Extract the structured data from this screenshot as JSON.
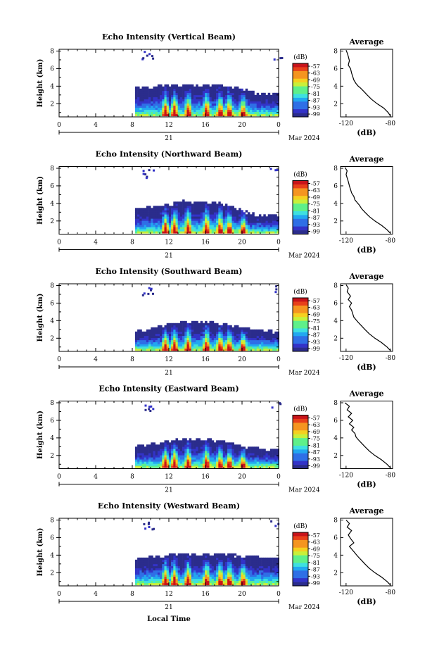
{
  "chart_data": [
    {
      "type": "heatmap",
      "title": "Echo Intensity (Vertical Beam)",
      "ylabel": "Height (km)",
      "x_ticks": [
        "0",
        "4",
        "8",
        "12",
        "16",
        "20",
        "0"
      ],
      "y_ticks": [
        "2",
        "4",
        "6",
        "8"
      ],
      "xlim": [
        0,
        24
      ],
      "ylim": [
        0.5,
        8.2
      ],
      "date_labels": {
        "day": "21",
        "month_year": "Mar 2024"
      },
      "colorbar": {
        "unit": "(dB)",
        "ticks": [
          "-57",
          "-63",
          "-69",
          "-75",
          "-81",
          "-87",
          "-93",
          "-99"
        ]
      },
      "profile": {
        "title": "Average",
        "xlabel": "(dB)",
        "x_ticks": [
          "-120",
          "-80"
        ],
        "y_ticks": [
          "2",
          "4",
          "6",
          "8"
        ],
        "xlim": [
          -125,
          -78
        ],
        "ylim": [
          0.5,
          8.2
        ],
        "x": [
          -80,
          -82,
          -86,
          -92,
          -97,
          -101,
          -104,
          -107,
          -109,
          -111,
          -113,
          -114,
          -115,
          -116,
          -118,
          -117,
          -118,
          -119,
          -120
        ],
        "y": [
          0.6,
          1.0,
          1.5,
          2.0,
          2.5,
          3.0,
          3.4,
          3.8,
          4.0,
          4.3,
          4.7,
          5.1,
          5.5,
          6.0,
          6.4,
          6.9,
          7.4,
          7.8,
          8.1
        ]
      },
      "cloud_top_km": [
        3.8,
        3.9,
        4.0,
        4.0,
        4.1,
        4.2,
        4.1,
        4.0,
        3.9,
        3.6,
        3.2,
        3.1,
        3.0
      ],
      "strong_echo_hours": [
        11.5,
        12.5,
        14.0,
        16.0,
        17.5,
        18.5,
        20.0
      ]
    },
    {
      "type": "heatmap",
      "title": "Echo Intensity (Northward Beam)",
      "ylabel": "Height (km)",
      "x_ticks": [
        "0",
        "4",
        "8",
        "12",
        "16",
        "20",
        "0"
      ],
      "y_ticks": [
        "2",
        "4",
        "6",
        "8"
      ],
      "xlim": [
        0,
        24
      ],
      "ylim": [
        0.5,
        8.2
      ],
      "date_labels": {
        "day": "21",
        "month_year": "Mar 2024"
      },
      "colorbar": {
        "unit": "(dB)",
        "ticks": [
          "-57",
          "-63",
          "-69",
          "-75",
          "-81",
          "-87",
          "-93",
          "-99"
        ]
      },
      "profile": {
        "title": "Average",
        "xlabel": "(dB)",
        "x_ticks": [
          "-120",
          "-80"
        ],
        "y_ticks": [
          "2",
          "4",
          "6",
          "8"
        ],
        "xlim": [
          -125,
          -78
        ],
        "ylim": [
          0.5,
          8.2
        ],
        "x": [
          -80,
          -83,
          -88,
          -94,
          -99,
          -103,
          -106,
          -108,
          -110,
          -112,
          -113,
          -115,
          -116,
          -117,
          -118,
          -119,
          -120,
          -119,
          -121
        ],
        "y": [
          0.6,
          1.0,
          1.5,
          2.0,
          2.5,
          3.0,
          3.4,
          3.8,
          4.1,
          4.4,
          4.8,
          5.2,
          5.6,
          6.0,
          6.5,
          6.9,
          7.3,
          7.7,
          8.1
        ]
      },
      "cloud_top_km": [
        3.3,
        3.5,
        3.7,
        3.9,
        4.3,
        4.0,
        4.2,
        4.0,
        3.6,
        3.1,
        2.7,
        2.6,
        2.5
      ],
      "strong_echo_hours": [
        11.5,
        12.5,
        14.0,
        16.0,
        17.5,
        18.5,
        20.0
      ]
    },
    {
      "type": "heatmap",
      "title": "Echo Intensity (Southward Beam)",
      "ylabel": "Height (km)",
      "x_ticks": [
        "0",
        "4",
        "8",
        "12",
        "16",
        "20",
        "0"
      ],
      "y_ticks": [
        "2",
        "4",
        "6",
        "8"
      ],
      "xlim": [
        0,
        24
      ],
      "ylim": [
        0.5,
        8.2
      ],
      "date_labels": {
        "day": "21",
        "month_year": "Mar 2024"
      },
      "colorbar": {
        "unit": "(dB)",
        "ticks": [
          "-57",
          "-63",
          "-69",
          "-75",
          "-81",
          "-87",
          "-93",
          "-99"
        ]
      },
      "profile": {
        "title": "Average",
        "xlabel": "(dB)",
        "x_ticks": [
          "-120",
          "-80"
        ],
        "y_ticks": [
          "2",
          "4",
          "6",
          "8"
        ],
        "xlim": [
          -125,
          -78
        ],
        "ylim": [
          0.5,
          8.2
        ],
        "x": [
          -80,
          -83,
          -88,
          -94,
          -99,
          -103,
          -106,
          -109,
          -111,
          -113,
          -114,
          -115,
          -117,
          -115,
          -118,
          -116,
          -119,
          -118,
          -120
        ],
        "y": [
          0.6,
          1.0,
          1.5,
          2.0,
          2.5,
          3.0,
          3.4,
          3.8,
          4.1,
          4.4,
          4.8,
          5.2,
          5.6,
          6.0,
          6.4,
          6.8,
          7.3,
          7.7,
          8.1
        ]
      },
      "cloud_top_km": [
        2.8,
        3.0,
        3.3,
        3.6,
        3.8,
        3.9,
        3.8,
        3.7,
        3.4,
        3.1,
        2.9,
        2.8,
        2.7
      ],
      "strong_echo_hours": [
        11.5,
        12.5,
        14.0,
        16.0,
        17.5,
        18.5,
        20.0
      ]
    },
    {
      "type": "heatmap",
      "title": "Echo Intensity (Eastward Beam)",
      "ylabel": "Height (km)",
      "x_ticks": [
        "0",
        "4",
        "8",
        "12",
        "16",
        "20",
        "0"
      ],
      "y_ticks": [
        "2",
        "4",
        "6",
        "8"
      ],
      "xlim": [
        0,
        24
      ],
      "ylim": [
        0.5,
        8.2
      ],
      "date_labels": {
        "day": "21",
        "month_year": "Mar 2024"
      },
      "colorbar": {
        "unit": "(dB)",
        "ticks": [
          "-57",
          "-63",
          "-69",
          "-75",
          "-81",
          "-87",
          "-93",
          "-99"
        ]
      },
      "profile": {
        "title": "Average",
        "xlabel": "(dB)",
        "x_ticks": [
          "-120",
          "-80"
        ],
        "y_ticks": [
          "2",
          "4",
          "6",
          "8"
        ],
        "xlim": [
          -125,
          -78
        ],
        "ylim": [
          0.5,
          8.2
        ],
        "x": [
          -80,
          -83,
          -88,
          -94,
          -99,
          -103,
          -106,
          -109,
          -111,
          -112,
          -115,
          -113,
          -117,
          -114,
          -118,
          -115,
          -119,
          -117,
          -121
        ],
        "y": [
          0.6,
          1.0,
          1.5,
          2.0,
          2.5,
          3.0,
          3.4,
          3.8,
          4.1,
          4.5,
          4.9,
          5.2,
          5.6,
          6.0,
          6.4,
          6.8,
          7.2,
          7.6,
          8.0
        ]
      },
      "cloud_top_km": [
        3.0,
        3.2,
        3.4,
        3.7,
        3.9,
        3.8,
        3.9,
        3.6,
        3.3,
        3.0,
        2.8,
        2.7,
        2.6
      ],
      "strong_echo_hours": [
        11.5,
        12.5,
        14.0,
        16.0,
        17.5,
        18.5,
        20.0
      ]
    },
    {
      "type": "heatmap",
      "title": "Echo Intensity (Westward Beam)",
      "ylabel": "Height (km)",
      "xlabel": "Local Time",
      "x_ticks": [
        "0",
        "4",
        "8",
        "12",
        "16",
        "20",
        "0"
      ],
      "y_ticks": [
        "2",
        "4",
        "6",
        "8"
      ],
      "xlim": [
        0,
        24
      ],
      "ylim": [
        0.5,
        8.2
      ],
      "date_labels": {
        "day": "21",
        "month_year": "Mar 2024"
      },
      "colorbar": {
        "unit": "(dB)",
        "ticks": [
          "-57",
          "-63",
          "-69",
          "-75",
          "-81",
          "-87",
          "-93",
          "-99"
        ]
      },
      "profile": {
        "title": "Average",
        "xlabel": "(dB)",
        "x_ticks": [
          "-120",
          "-80"
        ],
        "y_ticks": [
          "2",
          "4",
          "6",
          "8"
        ],
        "xlim": [
          -125,
          -78
        ],
        "ylim": [
          0.5,
          8.2
        ],
        "x": [
          -80,
          -83,
          -88,
          -94,
          -99,
          -103,
          -106,
          -109,
          -111,
          -113,
          -115,
          -117,
          -113,
          -116,
          -118,
          -115,
          -119,
          -117,
          -120
        ],
        "y": [
          0.6,
          1.0,
          1.5,
          2.0,
          2.5,
          3.0,
          3.4,
          3.8,
          4.1,
          4.4,
          4.7,
          5.0,
          5.4,
          5.9,
          6.3,
          6.8,
          7.2,
          7.6,
          8.0
        ]
      },
      "cloud_top_km": [
        3.6,
        3.8,
        3.9,
        4.0,
        4.1,
        4.2,
        4.2,
        4.1,
        4.0,
        3.9,
        3.8,
        3.7,
        3.7
      ],
      "strong_echo_hours": [
        11.5,
        12.5,
        14.0,
        16.0,
        17.5,
        18.5,
        20.0
      ]
    }
  ]
}
